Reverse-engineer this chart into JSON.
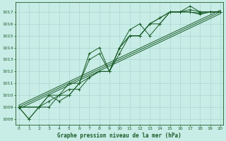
{
  "title": "Graphe pression niveau de la mer (hPa)",
  "bg_color": "#c8ece6",
  "line_color": "#1a5c28",
  "grid_color": "#a8d8d0",
  "ylim_min": 1007.5,
  "ylim_max": 1017.8,
  "xlim_min": -0.3,
  "xlim_max": 20.3,
  "yticks": [
    1008,
    1009,
    1010,
    1011,
    1012,
    1013,
    1014,
    1015,
    1016,
    1017
  ],
  "xticks": [
    0,
    1,
    2,
    3,
    4,
    5,
    6,
    7,
    8,
    9,
    10,
    11,
    12,
    13,
    14,
    15,
    16,
    17,
    18,
    19,
    20
  ],
  "s1_x": [
    0,
    1,
    2,
    3,
    4,
    5,
    6,
    7,
    8,
    9,
    10,
    11,
    12,
    13,
    14,
    15,
    16,
    17,
    18,
    19,
    20
  ],
  "s1_y": [
    1009,
    1008,
    1009,
    1009,
    1010,
    1010,
    1011,
    1013.5,
    1014,
    1012,
    1014,
    1015.5,
    1016,
    1015,
    1016,
    1017,
    1017,
    1017.5,
    1017,
    1017,
    1017
  ],
  "s2_x": [
    0,
    1,
    2,
    3,
    4,
    5,
    6,
    7,
    8,
    9,
    10,
    11,
    12,
    13,
    14,
    15,
    16,
    17,
    18,
    19,
    20
  ],
  "s2_y": [
    1009,
    1008,
    1009,
    1010,
    1010,
    1011,
    1011,
    1013,
    1013.5,
    1012,
    1014,
    1015,
    1015,
    1016,
    1016,
    1017,
    1017,
    1017.2,
    1017,
    1017,
    1017
  ],
  "s3_x": [
    0,
    2,
    3,
    4,
    5,
    6,
    7,
    8,
    9,
    10,
    11,
    12,
    13,
    14,
    15,
    16,
    17,
    18,
    19,
    20
  ],
  "s3_y": [
    1009,
    1009,
    1010,
    1009.5,
    1010,
    1011,
    1011.5,
    1012,
    1012,
    1013.5,
    1015,
    1015,
    1016,
    1016.5,
    1017,
    1017,
    1017,
    1016.8,
    1017,
    1017
  ],
  "s4_x": [
    0,
    2,
    3,
    4,
    5,
    6,
    7,
    8,
    9,
    10,
    11,
    12,
    13,
    14,
    15,
    16,
    17,
    18,
    19,
    20
  ],
  "s4_y": [
    1009,
    1009,
    1009.5,
    1010,
    1010.5,
    1010.5,
    1011.5,
    1012,
    1012,
    1014,
    1015,
    1015,
    1016,
    1016.5,
    1017,
    1017,
    1017,
    1016.9,
    1017,
    1017
  ],
  "trend_x": [
    0,
    20
  ],
  "trend_y": [
    1009,
    1017
  ]
}
